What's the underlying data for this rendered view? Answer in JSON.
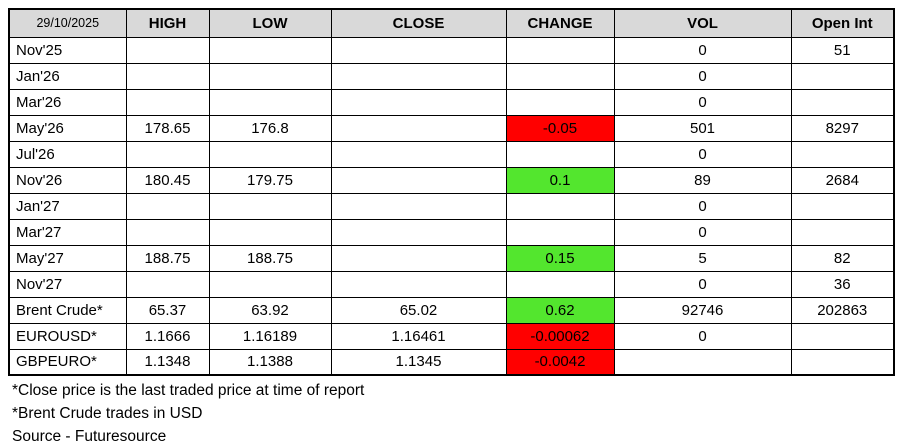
{
  "header": {
    "date": "29/10/2025",
    "columns": [
      "HIGH",
      "LOW",
      "CLOSE",
      "CHANGE",
      "VOL",
      "Open Int"
    ]
  },
  "rows": [
    {
      "label": "Nov'25",
      "high": "",
      "low": "",
      "close": "",
      "change": "",
      "change_color": "",
      "vol": "0",
      "open_int": "51"
    },
    {
      "label": "Jan'26",
      "high": "",
      "low": "",
      "close": "",
      "change": "",
      "change_color": "",
      "vol": "0",
      "open_int": ""
    },
    {
      "label": "Mar'26",
      "high": "",
      "low": "",
      "close": "",
      "change": "",
      "change_color": "",
      "vol": "0",
      "open_int": ""
    },
    {
      "label": "May'26",
      "high": "178.65",
      "low": "176.8",
      "close": "",
      "change": "-0.05",
      "change_color": "red",
      "vol": "501",
      "open_int": "8297"
    },
    {
      "label": "Jul'26",
      "high": "",
      "low": "",
      "close": "",
      "change": "",
      "change_color": "",
      "vol": "0",
      "open_int": ""
    },
    {
      "label": "Nov'26",
      "high": "180.45",
      "low": "179.75",
      "close": "",
      "change": "0.1",
      "change_color": "green",
      "vol": "89",
      "open_int": "2684"
    },
    {
      "label": "Jan'27",
      "high": "",
      "low": "",
      "close": "",
      "change": "",
      "change_color": "",
      "vol": "0",
      "open_int": ""
    },
    {
      "label": "Mar'27",
      "high": "",
      "low": "",
      "close": "",
      "change": "",
      "change_color": "",
      "vol": "0",
      "open_int": ""
    },
    {
      "label": "May'27",
      "high": "188.75",
      "low": "188.75",
      "close": "",
      "change": "0.15",
      "change_color": "green",
      "vol": "5",
      "open_int": "82"
    },
    {
      "label": "Nov'27",
      "high": "",
      "low": "",
      "close": "",
      "change": "",
      "change_color": "",
      "vol": "0",
      "open_int": "36"
    },
    {
      "label": "Brent Crude*",
      "high": "65.37",
      "low": "63.92",
      "close": "65.02",
      "change": "0.62",
      "change_color": "green",
      "vol": "92746",
      "open_int": "202863"
    },
    {
      "label": "EUROUSD*",
      "high": "1.1666",
      "low": "1.16189",
      "close": "1.16461",
      "change": "-0.00062",
      "change_color": "red",
      "vol": "0",
      "open_int": ""
    },
    {
      "label": "GBPEURO*",
      "high": "1.1348",
      "low": "1.1388",
      "close": "1.1345",
      "change": "-0.0042",
      "change_color": "red",
      "vol": "",
      "open_int": ""
    }
  ],
  "footnotes": [
    "*Close price is the last traded price at time of report",
    "*Brent Crude trades in USD",
    "Source - Futuresource"
  ],
  "colors": {
    "positive_change_bg": "#53E62E",
    "negative_change_bg": "#FF0000",
    "header_bg": "#D9D9D9",
    "border": "#000000"
  }
}
